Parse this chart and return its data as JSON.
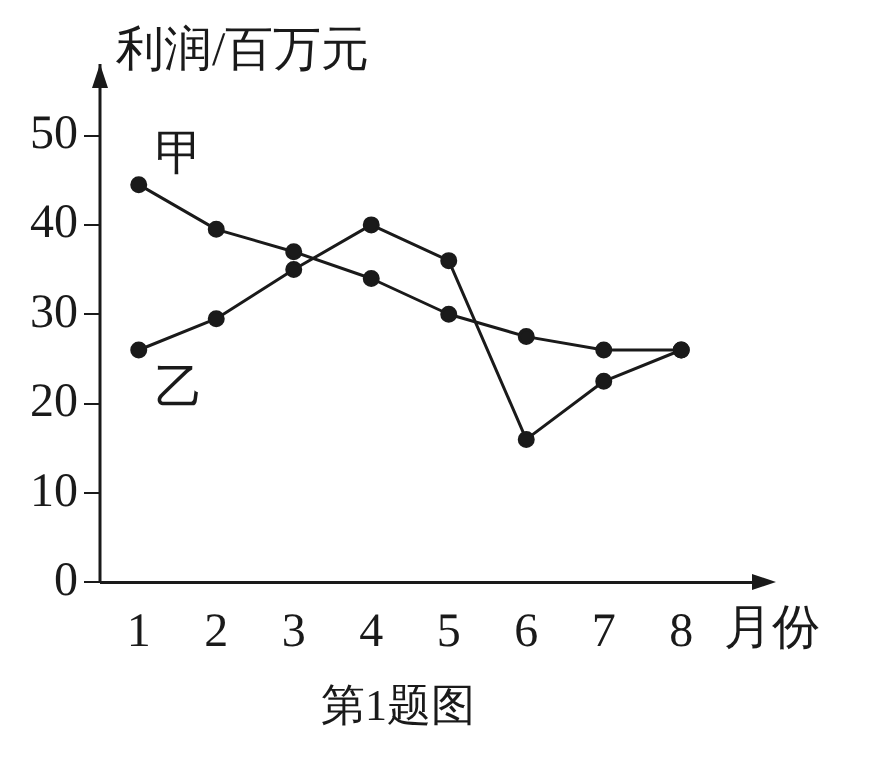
{
  "chart_data": {
    "type": "line",
    "xlabel": "月份",
    "ylabel": "利润/百万元",
    "categories": [
      "1",
      "2",
      "3",
      "4",
      "5",
      "6",
      "7",
      "8"
    ],
    "series": [
      {
        "name": "甲",
        "color": "#1a1a1a",
        "values": [
          44.5,
          39.5,
          37,
          34,
          30,
          27.5,
          26,
          26
        ]
      },
      {
        "name": "乙",
        "color": "#1a1a1a",
        "values": [
          26,
          29.5,
          35,
          40,
          36,
          16,
          22.5,
          26
        ]
      }
    ],
    "ylim": [
      0,
      58
    ],
    "yticks": [
      0,
      10,
      20,
      30,
      40,
      50
    ],
    "grid": false,
    "legend": false,
    "marker": "circle",
    "line_style": "solid",
    "annotations": [
      "第1题图"
    ]
  }
}
